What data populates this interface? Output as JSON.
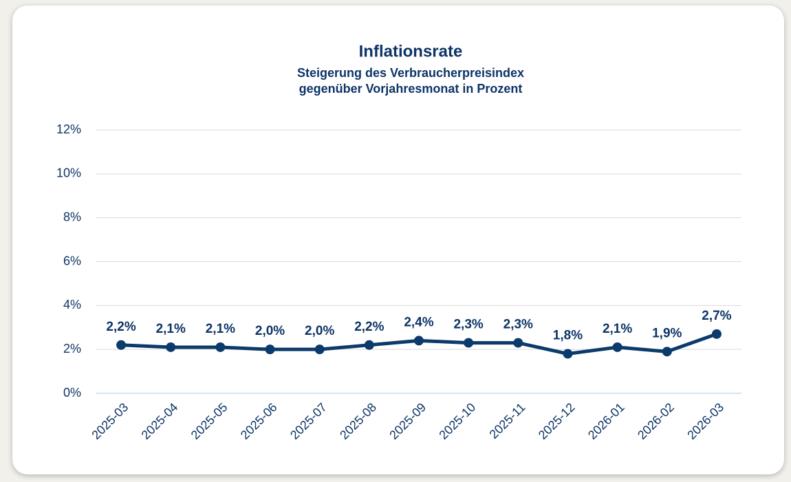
{
  "chart_data": {
    "type": "line",
    "title": "Inflationsrate",
    "subtitle": [
      "Steigerung des Verbraucherpreisindex",
      "gegenüber Vorjahresmonat in Prozent"
    ],
    "categories": [
      "2025-03",
      "2025-04",
      "2025-05",
      "2025-06",
      "2025-07",
      "2025-08",
      "2025-09",
      "2025-10",
      "2025-11",
      "2025-12",
      "2026-01",
      "2026-02",
      "2026-03"
    ],
    "values": [
      2.2,
      2.1,
      2.1,
      2.0,
      2.0,
      2.2,
      2.4,
      2.3,
      2.3,
      1.8,
      2.1,
      1.9,
      2.7
    ],
    "value_labels": [
      "2,2%",
      "2,1%",
      "2,1%",
      "2,0%",
      "2,0%",
      "2,2%",
      "2,4%",
      "2,3%",
      "2,3%",
      "1,8%",
      "2,1%",
      "1,9%",
      "2,7%"
    ],
    "color": "#0b3a6b",
    "ylim": [
      0,
      12
    ],
    "yticks": [
      {
        "value": 0,
        "label": "0%"
      },
      {
        "value": 2,
        "label": "2%"
      },
      {
        "value": 4,
        "label": "4%"
      },
      {
        "value": 6,
        "label": "6%"
      },
      {
        "value": 8,
        "label": "8%"
      },
      {
        "value": 10,
        "label": "10%"
      },
      {
        "value": 12,
        "label": "12%"
      }
    ],
    "grid": true
  }
}
